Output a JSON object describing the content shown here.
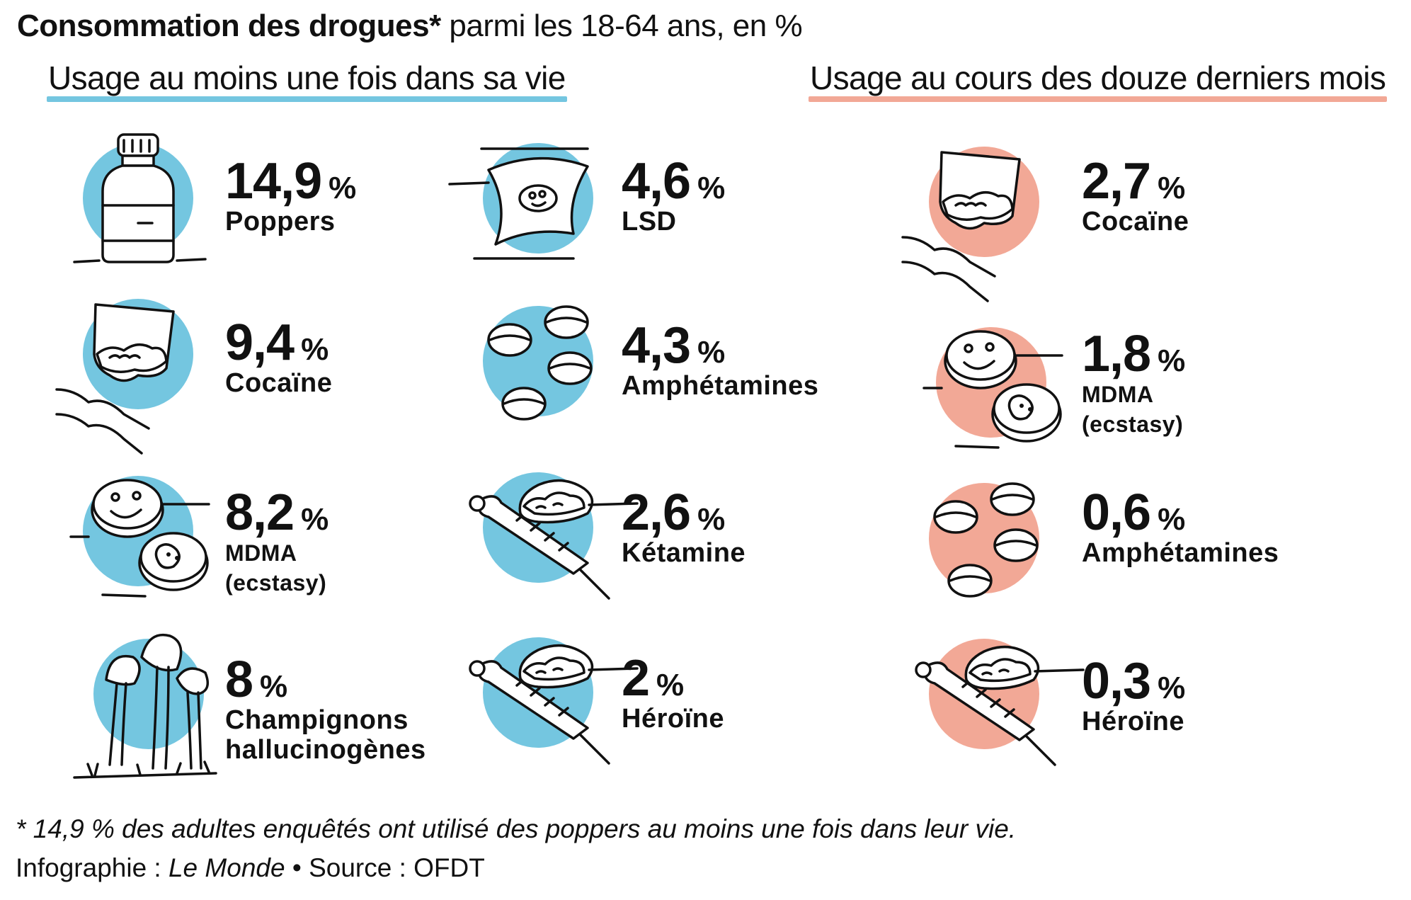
{
  "title": {
    "bold": "Consommation des drogues*",
    "rest": "parmi les 18-64 ans, en %"
  },
  "sections": {
    "lifetime": {
      "label": "Usage au moins une fois dans sa vie",
      "color": "#74c6e0"
    },
    "last_year": {
      "label": "Usage au cours des douze derniers mois",
      "color": "#f2a896"
    }
  },
  "items": [
    {
      "section": "lifetime",
      "icon": "poppers-bottle-icon",
      "value": "14,9",
      "pct": "%",
      "label": "Poppers",
      "label2": ""
    },
    {
      "section": "lifetime",
      "icon": "cocaine-bag-icon",
      "value": "9,4",
      "pct": "%",
      "label": "Cocaïne",
      "label2": ""
    },
    {
      "section": "lifetime",
      "icon": "mdma-pills-icon",
      "value": "8,2",
      "pct": "%",
      "label": "MDMA",
      "label2": "(ecstasy)"
    },
    {
      "section": "lifetime",
      "icon": "mushrooms-icon",
      "value": "8",
      "pct": "%",
      "label": "Champignons",
      "label2": "hallucinogènes"
    },
    {
      "section": "lifetime",
      "icon": "lsd-blotter-icon",
      "value": "4,6",
      "pct": "%",
      "label": "LSD",
      "label2": ""
    },
    {
      "section": "lifetime",
      "icon": "amphetamine-pills-icon",
      "value": "4,3",
      "pct": "%",
      "label": "Amphétamines",
      "label2": ""
    },
    {
      "section": "lifetime",
      "icon": "syringe-spoon-icon",
      "value": "2,6",
      "pct": "%",
      "label": "Kétamine",
      "label2": ""
    },
    {
      "section": "lifetime",
      "icon": "syringe-spoon-icon",
      "value": "2",
      "pct": "%",
      "label": "Héroïne",
      "label2": ""
    },
    {
      "section": "last_year",
      "icon": "cocaine-bag-icon",
      "value": "2,7",
      "pct": "%",
      "label": "Cocaïne",
      "label2": ""
    },
    {
      "section": "last_year",
      "icon": "mdma-pills-icon",
      "value": "1,8",
      "pct": "%",
      "label": "MDMA",
      "label2": "(ecstasy)"
    },
    {
      "section": "last_year",
      "icon": "amphetamine-pills-icon",
      "value": "0,6",
      "pct": "%",
      "label": "Amphétamines",
      "label2": ""
    },
    {
      "section": "last_year",
      "icon": "syringe-spoon-icon",
      "value": "0,3",
      "pct": "%",
      "label": "Héroïne",
      "label2": ""
    }
  ],
  "footnote": "* 14,9 % des adultes enquêtés ont utilisé des poppers au moins une fois dans leur vie.",
  "credit": {
    "prefix": "Infographie : ",
    "publication": "Le Monde",
    "suffix": " • Source : OFDT"
  }
}
